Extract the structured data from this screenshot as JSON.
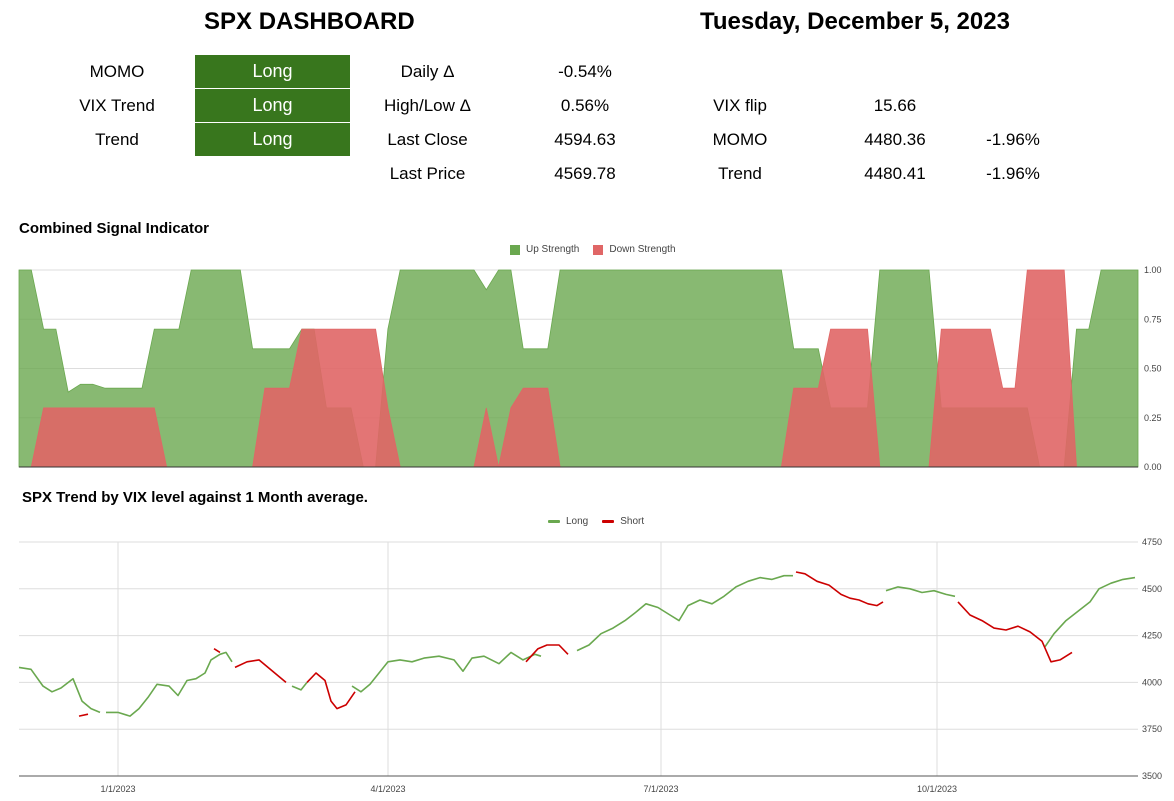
{
  "header": {
    "title": "SPX DASHBOARD",
    "date": "Tuesday, December 5, 2023"
  },
  "signals": [
    {
      "label": "MOMO",
      "value": "Long"
    },
    {
      "label": "VIX Trend",
      "value": "Long"
    },
    {
      "label": "Trend",
      "value": "Long"
    }
  ],
  "metrics": [
    {
      "label": "Daily Δ",
      "value": "-0.54%"
    },
    {
      "label": "High/Low Δ",
      "value": "0.56%"
    },
    {
      "label": "Last Close",
      "value": "4594.63"
    },
    {
      "label": "Last Price",
      "value": "4569.78"
    }
  ],
  "levels": [
    {
      "label": "VIX flip",
      "value": "15.66",
      "pct": ""
    },
    {
      "label": "MOMO",
      "value": "4480.36",
      "pct": "-1.96%"
    },
    {
      "label": "Trend",
      "value": "4480.41",
      "pct": "-1.96%"
    }
  ],
  "colors": {
    "signal_bg": "#38761d",
    "up": "#6aa84f",
    "down": "#e06666",
    "long": "#6aa84f",
    "short": "#cc0000"
  },
  "chart_data": [
    {
      "type": "area",
      "title": "Combined Signal Indicator",
      "legend_position": "top",
      "ylim": [
        0,
        1
      ],
      "y_ticks": [
        "1.00",
        "0.75",
        "0.50",
        "0.25",
        "0.00"
      ],
      "series": [
        {
          "name": "Up Strength",
          "values": [
            1,
            1,
            0.7,
            0.7,
            0.38,
            0.42,
            0.42,
            0.4,
            0.4,
            0.4,
            0.4,
            0.7,
            0.7,
            0.7,
            1,
            1,
            1,
            1,
            1,
            0.6,
            0.6,
            0.6,
            0.6,
            0.7,
            0.7,
            0.3,
            0.3,
            0.3,
            0,
            0,
            0.7,
            1,
            1,
            1,
            1,
            1,
            1,
            1,
            0.9,
            1,
            1,
            0.6,
            0.6,
            0.6,
            1,
            1,
            1,
            1,
            1,
            1,
            1,
            1,
            1,
            1,
            1,
            1,
            1,
            1,
            1,
            1,
            1,
            1,
            1,
            0.6,
            0.6,
            0.6,
            0.3,
            0.3,
            0.3,
            0.3,
            1,
            1,
            1,
            1,
            1,
            0.3,
            0.3,
            0.3,
            0.3,
            0.3,
            0.3,
            0.3,
            0.3,
            0,
            0,
            0,
            0.7,
            0.7,
            1,
            1,
            1,
            1
          ]
        },
        {
          "name": "Down Strength",
          "values": [
            0,
            0,
            0.3,
            0.3,
            0.3,
            0.3,
            0.3,
            0.3,
            0.3,
            0.3,
            0.3,
            0.3,
            0,
            0,
            0,
            0,
            0,
            0,
            0,
            0,
            0.4,
            0.4,
            0.4,
            0.7,
            0.7,
            0.7,
            0.7,
            0.7,
            0.7,
            0.7,
            0.3,
            0,
            0,
            0,
            0,
            0,
            0,
            0,
            0.3,
            0,
            0.3,
            0.4,
            0.4,
            0.4,
            0,
            0,
            0,
            0,
            0,
            0,
            0,
            0,
            0,
            0,
            0,
            0,
            0,
            0,
            0,
            0,
            0,
            0,
            0,
            0.4,
            0.4,
            0.4,
            0.7,
            0.7,
            0.7,
            0.7,
            0,
            0,
            0,
            0,
            0,
            0.7,
            0.7,
            0.7,
            0.7,
            0.7,
            0.4,
            0.4,
            1,
            1,
            1,
            1,
            0,
            0,
            0,
            0,
            0,
            0
          ]
        }
      ]
    },
    {
      "type": "line",
      "title": "SPX Trend by VIX level against 1 Month average.",
      "legend_position": "top",
      "ylim": [
        3500,
        4750
      ],
      "y_ticks": [
        "4750",
        "4500",
        "4250",
        "4000",
        "3750",
        "3500"
      ],
      "x_ticks": [
        "1/1/2023",
        "4/1/2023",
        "7/1/2023",
        "10/1/2023"
      ],
      "x_tick_days": [
        0,
        90,
        181,
        273
      ],
      "x_range_days": [
        -33,
        340
      ],
      "series": [
        {
          "name": "Long",
          "segments": [
            [
              [
                -33,
                4080
              ],
              [
                -29,
                4070
              ],
              [
                -25,
                3980
              ],
              [
                -22,
                3950
              ],
              [
                -19,
                3970
              ],
              [
                -15,
                4020
              ],
              [
                -12,
                3900
              ],
              [
                -9,
                3860
              ],
              [
                -6,
                3840
              ]
            ],
            [
              [
                -4,
                3840
              ],
              [
                0,
                3840
              ],
              [
                4,
                3820
              ],
              [
                7,
                3860
              ],
              [
                10,
                3920
              ],
              [
                13,
                3990
              ],
              [
                17,
                3980
              ],
              [
                20,
                3930
              ],
              [
                23,
                4010
              ],
              [
                26,
                4020
              ],
              [
                29,
                4050
              ],
              [
                31,
                4120
              ],
              [
                34,
                4150
              ],
              [
                36,
                4160
              ],
              [
                38,
                4110
              ]
            ],
            [
              [
                58,
                3980
              ],
              [
                61,
                3960
              ],
              [
                63,
                4000
              ]
            ],
            [
              [
                78,
                3980
              ],
              [
                81,
                3950
              ],
              [
                84,
                3990
              ],
              [
                87,
                4050
              ],
              [
                90,
                4110
              ],
              [
                94,
                4120
              ],
              [
                98,
                4110
              ],
              [
                102,
                4130
              ],
              [
                107,
                4140
              ],
              [
                112,
                4120
              ],
              [
                115,
                4060
              ],
              [
                118,
                4130
              ],
              [
                122,
                4140
              ],
              [
                127,
                4100
              ],
              [
                131,
                4160
              ],
              [
                135,
                4120
              ],
              [
                139,
                4150
              ],
              [
                141,
                4140
              ]
            ],
            [
              [
                153,
                4170
              ],
              [
                157,
                4200
              ],
              [
                161,
                4260
              ],
              [
                165,
                4290
              ],
              [
                169,
                4330
              ],
              [
                173,
                4380
              ],
              [
                176,
                4420
              ],
              [
                180,
                4400
              ],
              [
                184,
                4360
              ],
              [
                187,
                4330
              ],
              [
                190,
                4410
              ],
              [
                194,
                4440
              ],
              [
                198,
                4420
              ],
              [
                202,
                4460
              ],
              [
                206,
                4510
              ],
              [
                210,
                4540
              ],
              [
                214,
                4560
              ],
              [
                218,
                4550
              ],
              [
                222,
                4570
              ],
              [
                225,
                4570
              ]
            ],
            [
              [
                256,
                4490
              ],
              [
                260,
                4510
              ],
              [
                264,
                4500
              ],
              [
                268,
                4480
              ],
              [
                272,
                4490
              ],
              [
                276,
                4470
              ],
              [
                279,
                4460
              ]
            ],
            [
              [
                309,
                4190
              ],
              [
                312,
                4260
              ],
              [
                316,
                4330
              ],
              [
                320,
                4380
              ],
              [
                324,
                4430
              ],
              [
                327,
                4500
              ],
              [
                331,
                4530
              ],
              [
                335,
                4550
              ],
              [
                339,
                4560
              ]
            ]
          ]
        },
        {
          "name": "Short",
          "segments": [
            [
              [
                -13,
                3820
              ],
              [
                -10,
                3830
              ]
            ],
            [
              [
                32,
                4180
              ],
              [
                34,
                4160
              ]
            ],
            [
              [
                39,
                4080
              ],
              [
                43,
                4110
              ],
              [
                47,
                4120
              ],
              [
                50,
                4080
              ],
              [
                53,
                4040
              ],
              [
                56,
                4000
              ]
            ],
            [
              [
                63,
                4000
              ],
              [
                66,
                4050
              ],
              [
                69,
                4010
              ],
              [
                71,
                3900
              ],
              [
                73,
                3860
              ],
              [
                76,
                3880
              ],
              [
                79,
                3950
              ]
            ],
            [
              [
                136,
                4110
              ],
              [
                140,
                4180
              ],
              [
                143,
                4200
              ],
              [
                147,
                4200
              ],
              [
                150,
                4150
              ]
            ],
            [
              [
                226,
                4590
              ],
              [
                229,
                4580
              ],
              [
                233,
                4540
              ],
              [
                237,
                4520
              ],
              [
                241,
                4470
              ],
              [
                244,
                4450
              ],
              [
                247,
                4440
              ],
              [
                250,
                4420
              ],
              [
                253,
                4410
              ],
              [
                255,
                4430
              ]
            ],
            [
              [
                280,
                4430
              ],
              [
                284,
                4360
              ],
              [
                288,
                4330
              ],
              [
                292,
                4290
              ],
              [
                296,
                4280
              ],
              [
                300,
                4300
              ],
              [
                304,
                4270
              ],
              [
                308,
                4220
              ],
              [
                311,
                4110
              ],
              [
                314,
                4120
              ],
              [
                318,
                4160
              ]
            ]
          ]
        }
      ]
    }
  ]
}
